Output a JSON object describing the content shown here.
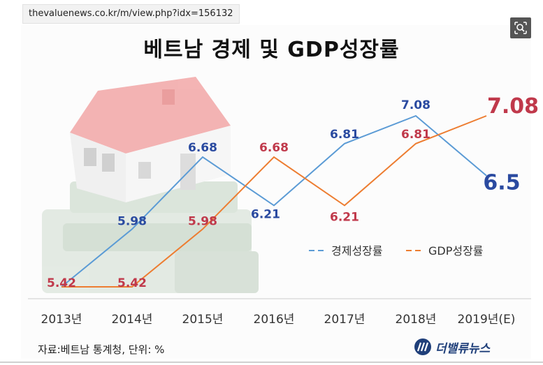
{
  "browser": {
    "url": "thevaluenews.co.kr/m/view.php?idx=156132"
  },
  "brand": {
    "name": "더밸류뉴스"
  },
  "source_note": "자료:베트남 통계청, 단위: %",
  "chart_data": {
    "type": "line",
    "title": "베트남 경제 및 GDP성장률",
    "categories": [
      "2013년",
      "2014년",
      "2015년",
      "2016년",
      "2017년",
      "2018년",
      "2019년(E)"
    ],
    "series": [
      {
        "name": "경제성장률",
        "values": [
          5.42,
          5.98,
          6.68,
          6.21,
          6.81,
          7.08,
          6.5
        ],
        "labels": [
          "",
          "5.98",
          "6.68",
          "6.21",
          "6.81",
          "7.08",
          "6.5"
        ],
        "color": "#5b9bd5",
        "label_color": "#2a4aa0"
      },
      {
        "name": "GDP성장률",
        "values": [
          5.42,
          5.42,
          5.98,
          6.68,
          6.21,
          6.81,
          7.08
        ],
        "labels": [
          "5.42",
          "5.42",
          "5.98",
          "6.68",
          "6.21",
          "6.81",
          "7.08"
        ],
        "color": "#ed7d31",
        "label_color": "#c0394b"
      }
    ],
    "ylim": [
      5.2,
      7.3
    ],
    "legend": "right",
    "grid": false
  }
}
